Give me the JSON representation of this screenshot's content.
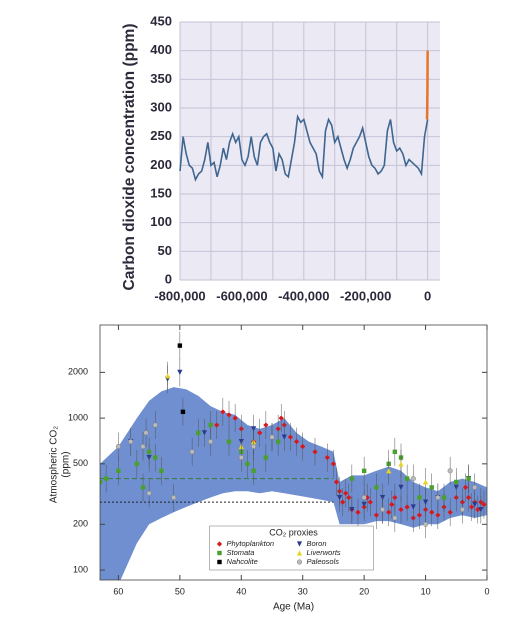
{
  "chart_data": [
    {
      "type": "line",
      "ylabel": "Carbon dioxide concentration (ppm)",
      "xlim": [
        -800000,
        40000
      ],
      "ylim": [
        0,
        450
      ],
      "xticks": [
        {
          "value": -800000,
          "label": "-800,000"
        },
        {
          "value": -600000,
          "label": "-600,000"
        },
        {
          "value": -400000,
          "label": "-400,000"
        },
        {
          "value": -200000,
          "label": "-200,000"
        },
        0
      ],
      "xgrid": [
        -700000,
        -500000,
        -300000,
        -100000
      ],
      "yticks": [
        0,
        50,
        100,
        150,
        200,
        250,
        300,
        350,
        400,
        450
      ],
      "grid": true,
      "background": "#ebe9f3",
      "grid_color": "#c6c3d6",
      "series": [
        {
          "color": "#3f6691",
          "x": [
            -800000,
            -790000,
            -780000,
            -770000,
            -760000,
            -750000,
            -740000,
            -730000,
            -720000,
            -710000,
            -700000,
            -690000,
            -680000,
            -670000,
            -660000,
            -650000,
            -640000,
            -630000,
            -620000,
            -610000,
            -600000,
            -590000,
            -580000,
            -570000,
            -560000,
            -550000,
            -540000,
            -530000,
            -520000,
            -510000,
            -500000,
            -490000,
            -480000,
            -470000,
            -460000,
            -450000,
            -440000,
            -430000,
            -420000,
            -410000,
            -400000,
            -390000,
            -380000,
            -370000,
            -360000,
            -350000,
            -340000,
            -330000,
            -320000,
            -310000,
            -300000,
            -290000,
            -280000,
            -270000,
            -260000,
            -250000,
            -240000,
            -230000,
            -220000,
            -210000,
            -200000,
            -190000,
            -180000,
            -170000,
            -160000,
            -150000,
            -140000,
            -130000,
            -120000,
            -110000,
            -100000,
            -90000,
            -80000,
            -70000,
            -60000,
            -50000,
            -40000,
            -30000,
            -20000,
            -10000,
            0
          ],
          "values": [
            190,
            250,
            220,
            200,
            195,
            175,
            185,
            190,
            210,
            240,
            200,
            205,
            180,
            200,
            230,
            210,
            240,
            255,
            240,
            250,
            210,
            200,
            215,
            250,
            215,
            200,
            240,
            250,
            255,
            240,
            230,
            190,
            220,
            210,
            185,
            180,
            210,
            240,
            285,
            275,
            280,
            260,
            240,
            230,
            220,
            190,
            180,
            260,
            280,
            270,
            240,
            250,
            230,
            210,
            195,
            210,
            230,
            240,
            250,
            265,
            240,
            215,
            200,
            195,
            185,
            190,
            200,
            260,
            280,
            240,
            225,
            230,
            220,
            200,
            210,
            205,
            200,
            195,
            185,
            250,
            280
          ]
        },
        {
          "color": "#e8742a",
          "x": [
            -2000,
            -1500,
            -1000,
            -500,
            -200,
            0
          ],
          "values": [
            280,
            290,
            310,
            340,
            370,
            400
          ]
        }
      ]
    },
    {
      "type": "scatter",
      "xlabel": "Age (Ma)",
      "ylabel": [
        "Atmospheric CO₂",
        "(ppm)"
      ],
      "xlim": [
        63,
        0
      ],
      "ylim": [
        86,
        4100
      ],
      "log_y": true,
      "xticks": [
        60,
        50,
        40,
        30,
        20,
        10,
        0
      ],
      "yticks": [
        100,
        200,
        500,
        1000,
        2000
      ],
      "axis_color": "#3a4f9c",
      "band": {
        "color": "#6f8fd0",
        "x": [
          63,
          60,
          57,
          55,
          53,
          51,
          49,
          47,
          45,
          43,
          41,
          39,
          37,
          35,
          33,
          31,
          29,
          27,
          25,
          24,
          22,
          20,
          18,
          16,
          14,
          12,
          10,
          8,
          6,
          4,
          2,
          0
        ],
        "upper": [
          500,
          650,
          1000,
          1300,
          1500,
          1600,
          1550,
          1400,
          1200,
          1100,
          1050,
          900,
          850,
          900,
          1000,
          800,
          700,
          650,
          600,
          380,
          420,
          420,
          450,
          480,
          450,
          380,
          350,
          330,
          380,
          400,
          380,
          350
        ],
        "lower": [
          80,
          80,
          150,
          200,
          220,
          240,
          260,
          280,
          300,
          320,
          330,
          330,
          320,
          330,
          320,
          310,
          300,
          290,
          280,
          200,
          200,
          200,
          210,
          210,
          200,
          190,
          200,
          200,
          220,
          230,
          220,
          230
        ]
      },
      "hlines": [
        {
          "value": 400,
          "color": "#3c7a3c",
          "x": [
            63,
            25
          ]
        },
        {
          "value": 280,
          "color": "#222222",
          "x": [
            63,
            25
          ]
        }
      ],
      "legend": {
        "title": "CO₂ proxies",
        "position": "lower center"
      },
      "series": [
        {
          "name": "Phytoplankton",
          "color": "#d7191c",
          "marker": "diamond",
          "x": [
            44,
            43,
            42,
            41,
            40,
            38,
            37,
            36,
            35,
            34,
            33.5,
            33,
            32,
            31,
            30,
            28,
            26,
            25,
            24.5,
            24,
            23.5,
            23,
            22.5,
            22,
            21,
            20,
            19.5,
            19,
            18,
            17,
            16,
            15.5,
            15,
            14,
            13,
            12,
            11,
            10,
            9,
            8,
            7,
            6,
            5,
            4,
            3.5,
            3,
            2.5,
            2,
            1.5,
            1,
            0.5
          ],
          "values": [
            900,
            1100,
            1050,
            1000,
            850,
            700,
            800,
            900,
            750,
            850,
            1000,
            900,
            750,
            700,
            650,
            600,
            550,
            500,
            380,
            330,
            280,
            320,
            300,
            250,
            240,
            260,
            300,
            280,
            230,
            250,
            240,
            270,
            300,
            250,
            260,
            220,
            230,
            250,
            240,
            230,
            260,
            240,
            300,
            280,
            350,
            300,
            260,
            280,
            250,
            280,
            270
          ]
        },
        {
          "name": "Boron",
          "color": "#2b3a8c",
          "marker": "triangle-down",
          "x": [
            58,
            55,
            52,
            50,
            46,
            40,
            38,
            33,
            24,
            22,
            20,
            17,
            14,
            12,
            10,
            8,
            5,
            3,
            2,
            1
          ],
          "values": [
            700,
            550,
            1800,
            2000,
            800,
            700,
            850,
            750,
            300,
            250,
            270,
            300,
            350,
            260,
            280,
            300,
            350,
            400,
            270,
            250
          ]
        },
        {
          "name": "Stomata",
          "color": "#4aa02c",
          "marker": "square",
          "x": [
            63,
            62,
            60,
            57,
            56,
            55,
            54,
            53,
            47,
            45,
            42,
            40,
            39,
            38,
            36,
            34,
            22,
            20,
            18,
            16,
            15,
            14,
            13,
            11,
            9,
            7,
            5,
            3
          ],
          "values": [
            380,
            400,
            450,
            500,
            350,
            600,
            550,
            450,
            800,
            900,
            700,
            600,
            500,
            450,
            550,
            700,
            400,
            450,
            350,
            500,
            600,
            550,
            400,
            300,
            350,
            300,
            380,
            400
          ]
        },
        {
          "name": "Liverworts",
          "color": "#e8d51e",
          "marker": "triangle",
          "x": [
            52,
            40,
            38,
            16,
            14,
            10
          ],
          "values": [
            1900,
            650,
            700,
            450,
            500,
            380
          ]
        },
        {
          "name": "Nahcolite",
          "color": "#000000",
          "marker": "square",
          "x": [
            50,
            49.5
          ],
          "values": [
            3000,
            1100
          ]
        },
        {
          "name": "Paleosols",
          "color": "#bbbbbb",
          "marker": "circle",
          "x": [
            60,
            58,
            56,
            55.5,
            55,
            54,
            51,
            48,
            45,
            40,
            38,
            35,
            20,
            17,
            15,
            12,
            10,
            8,
            6,
            4,
            2
          ],
          "values": [
            650,
            700,
            650,
            800,
            320,
            900,
            300,
            600,
            700,
            550,
            650,
            750,
            300,
            250,
            220,
            400,
            200,
            300,
            450,
            250,
            350
          ]
        }
      ]
    }
  ]
}
